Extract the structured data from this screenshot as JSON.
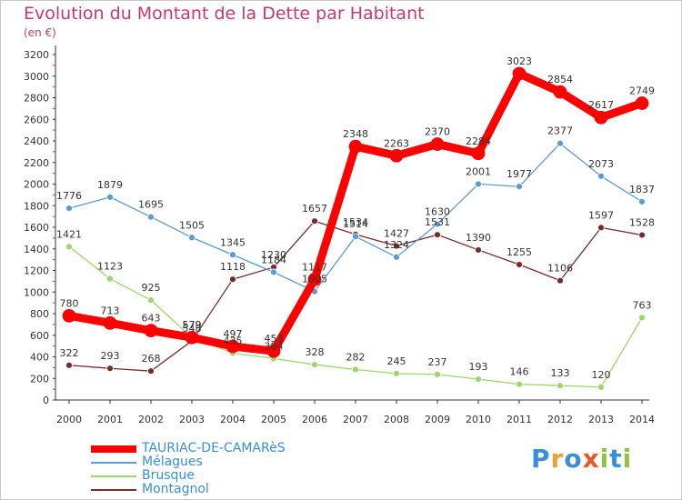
{
  "header": {
    "title": "Evolution du Montant de la Dette par Habitant",
    "unit": "(en €)"
  },
  "logo": {
    "text": "Proxiti",
    "letter_colors": [
      "#3a8fd8",
      "#f0a030",
      "#3a8fd8",
      "#e05a2a",
      "#8cc63f",
      "#3a8fd8",
      "#8cc63f"
    ]
  },
  "chart_data": {
    "type": "line",
    "title": "Evolution du Montant de la Dette par Habitant",
    "subtitle": "(en €)",
    "xlabel": "",
    "ylabel": "",
    "x": [
      "2000",
      "2001",
      "2002",
      "2003",
      "2004",
      "2005",
      "2006",
      "2007",
      "2008",
      "2009",
      "2010",
      "2011",
      "2012",
      "2013",
      "2014"
    ],
    "ylim": [
      0,
      3200
    ],
    "yticks": [
      0,
      200,
      400,
      600,
      800,
      1000,
      1200,
      1400,
      1600,
      1800,
      2000,
      2200,
      2400,
      2600,
      2800,
      3000,
      3200
    ],
    "grid": false,
    "legend_position": "bottom-left",
    "series": [
      {
        "name": "TAURIAC-DE-CAMARèS",
        "color": "#ff0000",
        "emphasis": true,
        "values": [
          780,
          713,
          643,
          579,
          497,
          453,
          1117,
          2348,
          2263,
          2370,
          2284,
          3023,
          2854,
          2617,
          2749
        ]
      },
      {
        "name": "Mélagues",
        "color": "#5b9bd5",
        "emphasis": false,
        "values": [
          1776,
          1879,
          1695,
          1505,
          1345,
          1184,
          1005,
          1514,
          1324,
          1630,
          2001,
          1977,
          2377,
          2073,
          1837
        ]
      },
      {
        "name": "Brusque",
        "color": "#9ad86a",
        "emphasis": false,
        "values": [
          1421,
          1123,
          925,
          579,
          435,
          384,
          328,
          282,
          245,
          237,
          193,
          146,
          133,
          120,
          763
        ]
      },
      {
        "name": "Montagnol",
        "color": "#7a2a2a",
        "emphasis": false,
        "values": [
          322,
          293,
          268,
          548,
          1118,
          1230,
          1657,
          1534,
          1427,
          1531,
          1390,
          1255,
          1106,
          1597,
          1528
        ]
      }
    ]
  }
}
